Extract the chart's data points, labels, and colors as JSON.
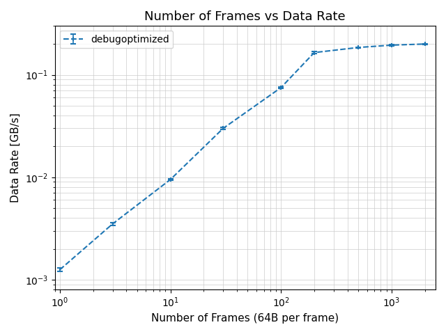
{
  "title": "Number of Frames vs Data Rate",
  "xlabel": "Number of Frames (64B per frame)",
  "ylabel": "Data Rate [GB/s]",
  "legend_label": "debugoptimized",
  "line_color": "#1f77b4",
  "x": [
    1,
    3,
    10,
    30,
    100,
    200,
    500,
    1000,
    2000
  ],
  "y": [
    0.00125,
    0.0035,
    0.0095,
    0.03,
    0.075,
    0.165,
    0.185,
    0.195,
    0.2
  ],
  "yerr": [
    5e-05,
    0.0001,
    0.0002,
    0.0005,
    0.001,
    0.003,
    0.002,
    0.002,
    0.002
  ],
  "xlim": [
    0.9,
    2500
  ],
  "ylim": [
    0.0008,
    0.3
  ],
  "grid": true
}
